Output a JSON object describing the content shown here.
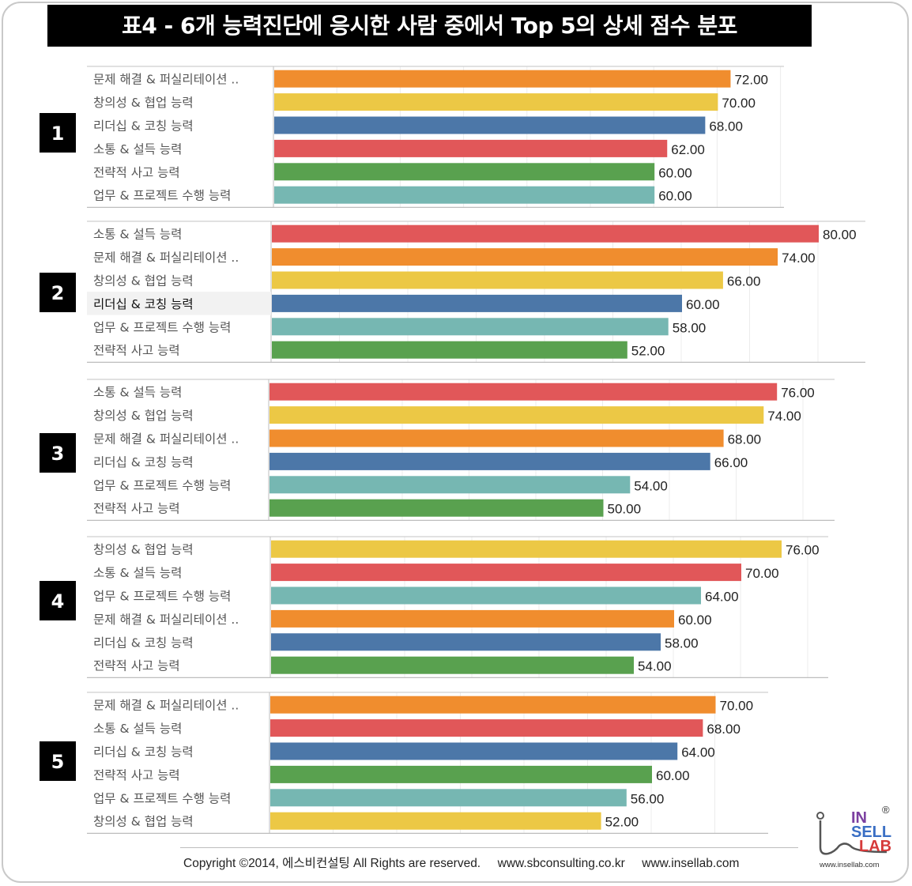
{
  "title": "표4 - 6개 능력진단에 응시한 사람 중에서 Top 5의 상세 점수 분포",
  "colors": {
    "문제 해결 & 퍼실리테이션 ..": "#f08d2e",
    "창의성 & 협업 능력": "#ecc845",
    "리더십 & 코칭 능력": "#4c77a8",
    "소통 & 설득 능력": "#e15759",
    "전략적 사고 능력": "#59a14f",
    "업무 & 프로젝트 수행 능력": "#76b7b2"
  },
  "chart_data": [
    {
      "type": "bar",
      "orientation": "horizontal",
      "rank_label": "1",
      "categories": [
        "문제 해결 & 퍼실리테이션 ..",
        "창의성 & 협업 능력",
        "리더십 & 코칭 능력",
        "소통 & 설득 능력",
        "전략적 사고 능력",
        "업무 & 프로젝트 수행 능력"
      ],
      "values": [
        72,
        70,
        68,
        62,
        60,
        60
      ],
      "value_labels": [
        "72.00",
        "70.00",
        "68.00",
        "62.00",
        "60.00",
        "60.00"
      ],
      "grid": true
    },
    {
      "type": "bar",
      "orientation": "horizontal",
      "rank_label": "2",
      "categories": [
        "소통 & 설득 능력",
        "문제 해결 & 퍼실리테이션 ..",
        "창의성 & 협업 능력",
        "리더십 & 코칭 능력",
        "업무 & 프로젝트 수행 능력",
        "전략적 사고 능력"
      ],
      "values": [
        80,
        74,
        66,
        60,
        58,
        52
      ],
      "value_labels": [
        "80.00",
        "74.00",
        "66.00",
        "60.00",
        "58.00",
        "52.00"
      ],
      "highlighted_category": "리더십 & 코칭 능력",
      "grid": true
    },
    {
      "type": "bar",
      "orientation": "horizontal",
      "rank_label": "3",
      "categories": [
        "소통 & 설득 능력",
        "창의성 & 협업 능력",
        "문제 해결 & 퍼실리테이션 ..",
        "리더십 & 코칭 능력",
        "업무 & 프로젝트 수행 능력",
        "전략적 사고 능력"
      ],
      "values": [
        76,
        74,
        68,
        66,
        54,
        50
      ],
      "value_labels": [
        "76.00",
        "74.00",
        "68.00",
        "66.00",
        "54.00",
        "50.00"
      ],
      "grid": true
    },
    {
      "type": "bar",
      "orientation": "horizontal",
      "rank_label": "4",
      "categories": [
        "창의성 & 협업 능력",
        "소통 & 설득 능력",
        "업무 & 프로젝트 수행 능력",
        "문제 해결 & 퍼실리테이션 ..",
        "리더십 & 코칭 능력",
        "전략적 사고 능력"
      ],
      "values": [
        76,
        70,
        64,
        60,
        58,
        54
      ],
      "value_labels": [
        "76.00",
        "70.00",
        "64.00",
        "60.00",
        "58.00",
        "54.00"
      ],
      "grid": true
    },
    {
      "type": "bar",
      "orientation": "horizontal",
      "rank_label": "5",
      "categories": [
        "문제 해결 & 퍼실리테이션 ..",
        "소통 & 설득 능력",
        "리더십 & 코칭 능력",
        "전략적 사고 능력",
        "업무 & 프로젝트 수행 능력",
        "창의성 & 협업 능력"
      ],
      "values": [
        70,
        68,
        64,
        60,
        56,
        52
      ],
      "value_labels": [
        "70.00",
        "68.00",
        "64.00",
        "60.00",
        "56.00",
        "52.00"
      ],
      "grid": true
    }
  ],
  "footer": {
    "copyright": "Copyright ©2014, 에스비컨설팅 All Rights are reserved.     www.sbconsulting.co.kr     www.insellab.com"
  },
  "logo": {
    "in": "IN",
    "sell": "SELL",
    "lab": "LAB",
    "registered": "®",
    "url": "www.insellab.com"
  }
}
